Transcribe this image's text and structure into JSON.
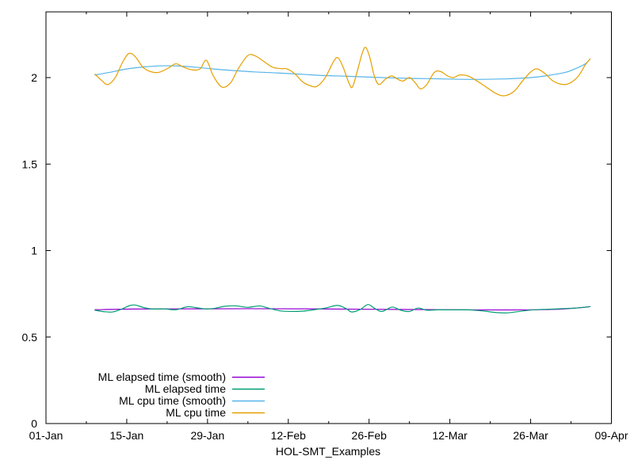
{
  "chart_data": {
    "type": "line",
    "title": "",
    "xlabel": "HOL-SMT_Examples",
    "ylabel": "",
    "grid": false,
    "legend_position": "inside-bottom-left",
    "x_axis": {
      "unit": "date",
      "range_days": [
        0,
        98
      ],
      "major_ticks": [
        {
          "day": 0,
          "label": "01-Jan"
        },
        {
          "day": 14,
          "label": "15-Jan"
        },
        {
          "day": 28,
          "label": "29-Jan"
        },
        {
          "day": 42,
          "label": "12-Feb"
        },
        {
          "day": 56,
          "label": "26-Feb"
        },
        {
          "day": 70,
          "label": "12-Mar"
        },
        {
          "day": 84,
          "label": "26-Mar"
        },
        {
          "day": 98,
          "label": "09-Apr"
        }
      ],
      "minor_tick_days": [
        7,
        21,
        35,
        49,
        63,
        77,
        91
      ]
    },
    "y_axis": {
      "range": [
        0,
        2.38
      ],
      "major_ticks": [
        {
          "value": 0,
          "label": "0"
        },
        {
          "value": 0.5,
          "label": "0.5"
        },
        {
          "value": 1,
          "label": "1"
        },
        {
          "value": 1.5,
          "label": "1.5"
        },
        {
          "value": 2,
          "label": "2"
        }
      ]
    },
    "series": [
      {
        "name": "ML elapsed time (smooth)",
        "color": "#9400d3",
        "points": [
          [
            8.5,
            0.658
          ],
          [
            15,
            0.662
          ],
          [
            25,
            0.663
          ],
          [
            35,
            0.664
          ],
          [
            45,
            0.663
          ],
          [
            55,
            0.661
          ],
          [
            65,
            0.659
          ],
          [
            75,
            0.657
          ],
          [
            82,
            0.657
          ],
          [
            88,
            0.66
          ],
          [
            92,
            0.668
          ],
          [
            94.3,
            0.676
          ]
        ]
      },
      {
        "name": "ML elapsed time",
        "color": "#009e73",
        "points": [
          [
            8.5,
            0.655
          ],
          [
            10,
            0.647
          ],
          [
            11.5,
            0.645
          ],
          [
            13,
            0.66
          ],
          [
            14.5,
            0.682
          ],
          [
            15.5,
            0.685
          ],
          [
            17,
            0.67
          ],
          [
            18.5,
            0.662
          ],
          [
            20.5,
            0.663
          ],
          [
            22.5,
            0.658
          ],
          [
            24.5,
            0.675
          ],
          [
            26,
            0.67
          ],
          [
            27.5,
            0.663
          ],
          [
            29,
            0.665
          ],
          [
            31,
            0.678
          ],
          [
            33,
            0.68
          ],
          [
            35,
            0.672
          ],
          [
            37,
            0.68
          ],
          [
            38.5,
            0.668
          ],
          [
            40.5,
            0.652
          ],
          [
            42.5,
            0.648
          ],
          [
            44.5,
            0.65
          ],
          [
            46.5,
            0.658
          ],
          [
            48.5,
            0.668
          ],
          [
            50.5,
            0.683
          ],
          [
            52,
            0.665
          ],
          [
            53,
            0.645
          ],
          [
            54.5,
            0.66
          ],
          [
            55.8,
            0.688
          ],
          [
            57,
            0.665
          ],
          [
            58.2,
            0.648
          ],
          [
            60,
            0.673
          ],
          [
            61.5,
            0.655
          ],
          [
            63,
            0.648
          ],
          [
            64.5,
            0.668
          ],
          [
            66,
            0.655
          ],
          [
            68,
            0.658
          ],
          [
            70,
            0.657
          ],
          [
            72,
            0.658
          ],
          [
            74,
            0.656
          ],
          [
            76,
            0.65
          ],
          [
            78,
            0.642
          ],
          [
            80,
            0.64
          ],
          [
            82,
            0.648
          ],
          [
            84,
            0.656
          ],
          [
            86,
            0.66
          ],
          [
            88,
            0.662
          ],
          [
            90,
            0.665
          ],
          [
            92,
            0.668
          ],
          [
            94.3,
            0.676
          ]
        ]
      },
      {
        "name": "ML cpu time (smooth)",
        "color": "#56b4e9",
        "points": [
          [
            8.5,
            2.015
          ],
          [
            11,
            2.03
          ],
          [
            14,
            2.05
          ],
          [
            17,
            2.062
          ],
          [
            20,
            2.068
          ],
          [
            23,
            2.067
          ],
          [
            26,
            2.06
          ],
          [
            29,
            2.05
          ],
          [
            32,
            2.042
          ],
          [
            36,
            2.033
          ],
          [
            40,
            2.027
          ],
          [
            44,
            2.02
          ],
          [
            48,
            2.012
          ],
          [
            52,
            2.008
          ],
          [
            56,
            2.003
          ],
          [
            60,
            1.998
          ],
          [
            64,
            1.995
          ],
          [
            68,
            1.993
          ],
          [
            72,
            1.99
          ],
          [
            76,
            1.99
          ],
          [
            80,
            1.993
          ],
          [
            84,
            2.0
          ],
          [
            87,
            2.012
          ],
          [
            90,
            2.03
          ],
          [
            92,
            2.055
          ],
          [
            93.5,
            2.08
          ],
          [
            94.3,
            2.108
          ]
        ]
      },
      {
        "name": "ML cpu time",
        "color": "#e69f00",
        "points": [
          [
            8.5,
            2.02
          ],
          [
            9.6,
            1.985
          ],
          [
            10.7,
            1.96
          ],
          [
            12,
            2.0
          ],
          [
            13.3,
            2.09
          ],
          [
            14.4,
            2.14
          ],
          [
            15.5,
            2.12
          ],
          [
            16.8,
            2.06
          ],
          [
            18.1,
            2.035
          ],
          [
            19.5,
            2.03
          ],
          [
            21.2,
            2.055
          ],
          [
            22.5,
            2.08
          ],
          [
            23.9,
            2.06
          ],
          [
            25.3,
            2.045
          ],
          [
            26.7,
            2.05
          ],
          [
            27.8,
            2.1
          ],
          [
            29,
            2.01
          ],
          [
            30.5,
            1.945
          ],
          [
            32,
            1.97
          ],
          [
            33.3,
            2.05
          ],
          [
            35,
            2.128
          ],
          [
            36.3,
            2.125
          ],
          [
            37.9,
            2.09
          ],
          [
            39.3,
            2.06
          ],
          [
            40.7,
            2.052
          ],
          [
            41.8,
            2.05
          ],
          [
            43.2,
            2.02
          ],
          [
            44.5,
            1.975
          ],
          [
            45.9,
            1.952
          ],
          [
            47,
            1.95
          ],
          [
            48.4,
            2.0
          ],
          [
            49.8,
            2.09
          ],
          [
            50.6,
            2.115
          ],
          [
            51.5,
            2.06
          ],
          [
            52.5,
            1.97
          ],
          [
            53.1,
            1.945
          ],
          [
            53.9,
            2.03
          ],
          [
            54.8,
            2.14
          ],
          [
            55.4,
            2.175
          ],
          [
            56.1,
            2.12
          ],
          [
            56.9,
            2.01
          ],
          [
            57.7,
            1.96
          ],
          [
            58.8,
            1.99
          ],
          [
            59.9,
            2.01
          ],
          [
            61,
            1.99
          ],
          [
            61.9,
            1.98
          ],
          [
            63,
            2.0
          ],
          [
            64,
            1.97
          ],
          [
            64.9,
            1.935
          ],
          [
            66,
            1.96
          ],
          [
            67.3,
            2.03
          ],
          [
            68.4,
            2.035
          ],
          [
            69.6,
            2.01
          ],
          [
            70.6,
            2.0
          ],
          [
            71.7,
            2.015
          ],
          [
            73.1,
            2.01
          ],
          [
            74.5,
            1.985
          ],
          [
            76.1,
            1.95
          ],
          [
            77.9,
            1.91
          ],
          [
            79.4,
            1.895
          ],
          [
            81.1,
            1.92
          ],
          [
            82.7,
            1.985
          ],
          [
            84.1,
            2.035
          ],
          [
            85.2,
            2.05
          ],
          [
            86.6,
            2.02
          ],
          [
            87.9,
            1.98
          ],
          [
            89.6,
            1.96
          ],
          [
            90.9,
            1.97
          ],
          [
            92.3,
            2.01
          ],
          [
            93.4,
            2.07
          ],
          [
            94.3,
            2.108
          ]
        ]
      }
    ]
  }
}
